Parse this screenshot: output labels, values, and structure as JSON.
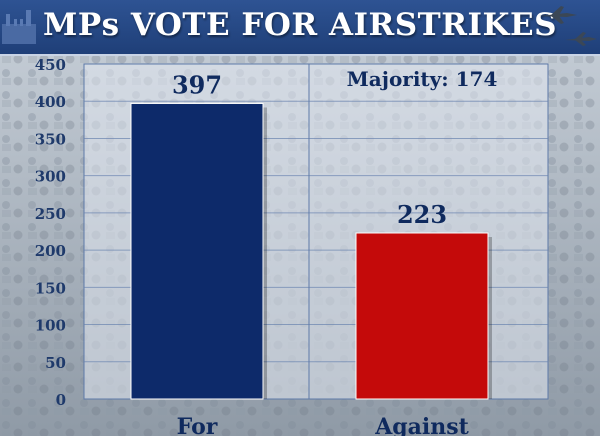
{
  "header": {
    "title": "MPs VOTE FOR AIRSTRIKES"
  },
  "colors": {
    "for_bar": "#0d2a6a",
    "against_bar": "#c40a0a",
    "banner": "#27498a",
    "value_text": "#0f2a5e",
    "axis_text": "#1f3a6b"
  },
  "icons": [
    "parliament-building-icon",
    "jet-icon"
  ],
  "chart_data": {
    "type": "bar",
    "categories": [
      "For",
      "Against"
    ],
    "values": [
      397,
      223
    ],
    "value_labels": [
      "397",
      "223"
    ],
    "yticks": [
      "0",
      "50",
      "100",
      "150",
      "200",
      "250",
      "300",
      "350",
      "400",
      "450"
    ],
    "ylim": [
      0,
      450
    ],
    "grid": true,
    "annotation": "Majority: 174",
    "title": "",
    "xlabel": "",
    "ylabel": ""
  }
}
